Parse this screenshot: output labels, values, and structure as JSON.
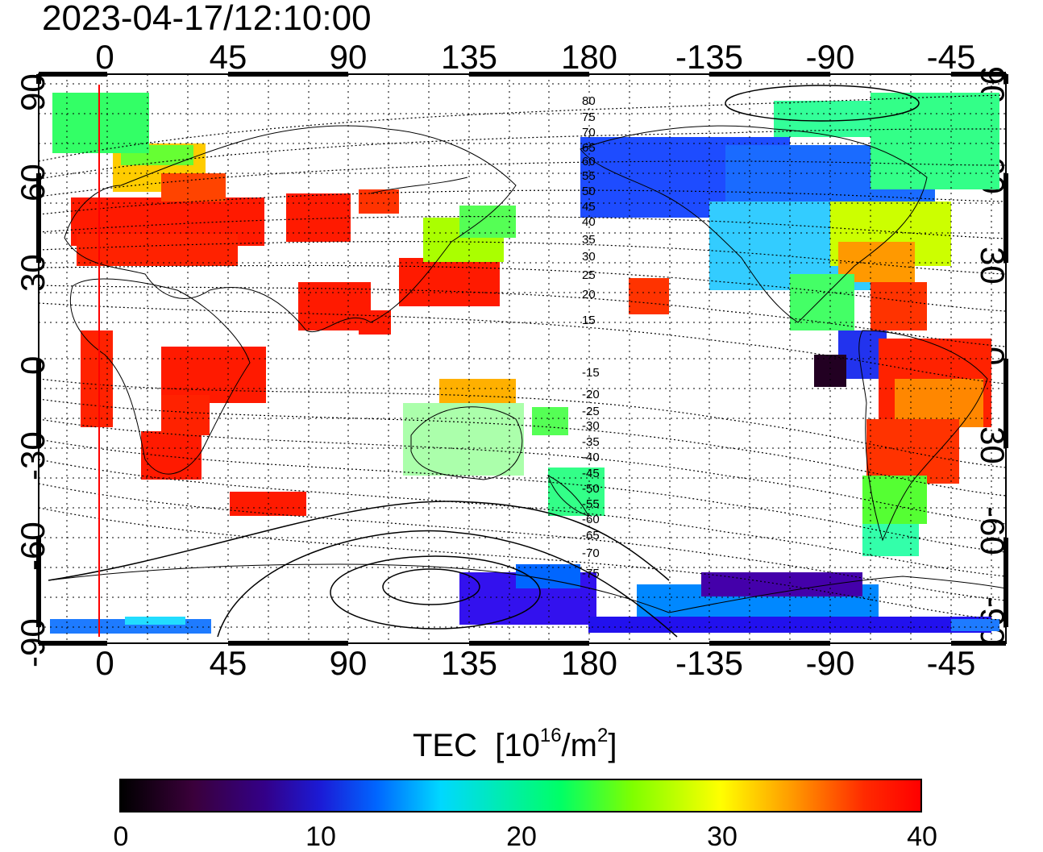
{
  "timestamp": "2023-04-17/12:10:00",
  "axes": {
    "lon_ticks": [
      "0",
      "45",
      "90",
      "135",
      "180",
      "-135",
      "-90",
      "-45"
    ],
    "lat_ticks_left": [
      "90",
      "60",
      "30",
      "0",
      "-30",
      "-60",
      "-90"
    ],
    "lat_ticks_right": [
      "90",
      "60",
      "30",
      "0",
      "-30",
      "-60",
      "-90"
    ],
    "map_lon_range": [
      -25,
      335
    ],
    "map_lat_range": [
      -95,
      95
    ]
  },
  "magnetic_latitude_labels": [
    "80",
    "75",
    "70",
    "65",
    "60",
    "55",
    "50",
    "45",
    "40",
    "35",
    "30",
    "25",
    "20",
    "15",
    "-15",
    "-20",
    "-25",
    "-30",
    "-35",
    "-40",
    "-45",
    "-50",
    "-55",
    "-60",
    "-65",
    "-70",
    "-75"
  ],
  "colorbar": {
    "title": "TEC",
    "unit_base": "[10",
    "unit_exp": "16",
    "unit_mid": "/m",
    "unit_exp2": "2",
    "unit_end": "]",
    "tick_labels": [
      "0",
      "10",
      "20",
      "30",
      "40"
    ],
    "range": [
      0,
      40
    ],
    "colors": [
      "#000000",
      "#330088",
      "#0066ff",
      "#00d8ff",
      "#00ff66",
      "#ffff00",
      "#ff9900",
      "#ff0000"
    ]
  },
  "marker": {
    "lon": -2,
    "color": "#ff0000"
  }
}
